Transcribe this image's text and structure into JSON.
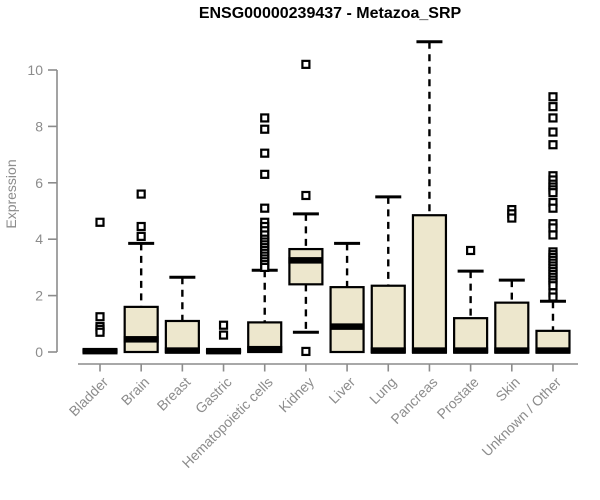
{
  "chart_data": {
    "type": "boxplot",
    "title": "ENSG00000239437 - Metazoa_SRP",
    "ylabel": "Expression",
    "xlabel": "",
    "yticks": [
      0,
      2,
      4,
      6,
      8,
      10
    ],
    "ylim": [
      0,
      11.2
    ],
    "grid": false,
    "legend": "none",
    "categories": [
      "Bladder",
      "Brain",
      "Breast",
      "Gastric",
      "Hematopoietic cells",
      "Kidney",
      "Liver",
      "Lung",
      "Pancreas",
      "Prostate",
      "Skin",
      "Unknown / Other"
    ],
    "boxes": [
      {
        "category": "Bladder",
        "q1": 0,
        "median": 0.03,
        "q3": 0.07,
        "whisker_low": 0,
        "whisker_high": 0.07,
        "outliers": [
          4.6,
          1.25,
          0.9,
          0.8,
          0.7
        ]
      },
      {
        "category": "Brain",
        "q1": 0,
        "median": 0.45,
        "q3": 1.6,
        "whisker_low": 0,
        "whisker_high": 3.85,
        "outliers": [
          5.6,
          4.45,
          4.1
        ]
      },
      {
        "category": "Breast",
        "q1": 0,
        "median": 0.05,
        "q3": 1.1,
        "whisker_low": 0,
        "whisker_high": 2.65,
        "outliers": []
      },
      {
        "category": "Gastric",
        "q1": 0,
        "median": 0.03,
        "q3": 0.07,
        "whisker_low": 0,
        "whisker_high": 0.07,
        "outliers": [
          0.95,
          0.6
        ]
      },
      {
        "category": "Hematopoietic cells",
        "q1": 0,
        "median": 0.1,
        "q3": 1.05,
        "whisker_low": 0,
        "whisker_high": 2.9,
        "outliers": [
          8.3,
          7.9,
          7.05,
          6.3,
          5.1,
          4.6,
          4.45,
          4.3,
          4.15,
          4.0,
          3.9,
          3.8,
          3.7,
          3.6,
          3.5,
          3.4,
          3.3,
          3.2,
          3.1,
          3.0
        ]
      },
      {
        "category": "Kidney",
        "q1": 2.4,
        "median": 3.25,
        "q3": 3.65,
        "whisker_low": 0.7,
        "whisker_high": 4.9,
        "outliers": [
          10.2,
          5.55,
          0.02
        ]
      },
      {
        "category": "Liver",
        "q1": 0,
        "median": 0.9,
        "q3": 2.3,
        "whisker_low": 0,
        "whisker_high": 3.85,
        "outliers": []
      },
      {
        "category": "Lung",
        "q1": 0,
        "median": 0.05,
        "q3": 2.35,
        "whisker_low": 0,
        "whisker_high": 5.5,
        "outliers": []
      },
      {
        "category": "Pancreas",
        "q1": 0,
        "median": 0.05,
        "q3": 4.85,
        "whisker_low": 0,
        "whisker_high": 11.0,
        "outliers": []
      },
      {
        "category": "Prostate",
        "q1": 0,
        "median": 0.05,
        "q3": 1.2,
        "whisker_low": 0,
        "whisker_high": 2.87,
        "outliers": [
          3.6
        ]
      },
      {
        "category": "Skin",
        "q1": 0,
        "median": 0.05,
        "q3": 1.75,
        "whisker_low": 0,
        "whisker_high": 2.55,
        "outliers": [
          5.05,
          4.9,
          4.75
        ]
      },
      {
        "category": "Unknown / Other",
        "q1": 0,
        "median": 0.05,
        "q3": 0.75,
        "whisker_low": 0,
        "whisker_high": 1.8,
        "outliers": [
          9.05,
          8.7,
          8.3,
          7.8,
          7.35,
          6.25,
          6.1,
          5.95,
          5.85,
          5.75,
          5.65,
          5.3,
          5.1,
          4.55,
          4.4,
          4.15,
          3.55,
          3.45,
          3.35,
          3.25,
          3.15,
          3.05,
          2.95,
          2.85,
          2.75,
          2.65,
          2.55,
          2.45,
          2.35,
          2.1,
          1.95
        ]
      }
    ],
    "colors": {
      "box_fill": "#ede7cd",
      "box_stroke": "#000000",
      "median": "#000000",
      "whisker": "#000000",
      "axis": "#8c8c8c",
      "label": "#8c8c8c",
      "title": "#000000",
      "background": "#ffffff"
    }
  }
}
